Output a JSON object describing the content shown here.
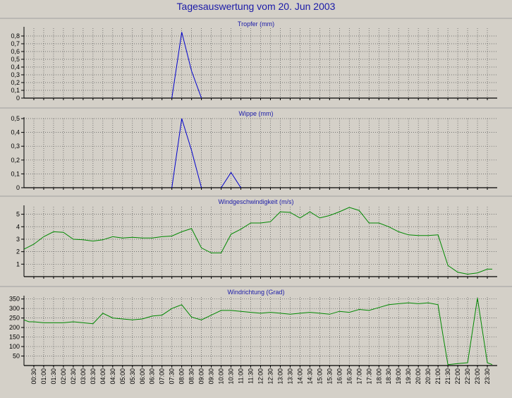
{
  "title": "Tagesauswertung vom 20. Jun 2003",
  "chart_data": [
    {
      "type": "line",
      "title": "Tropfer (mm)",
      "x": [
        "07:30",
        "08:00",
        "08:30",
        "09:00"
      ],
      "values": [
        0,
        0.85,
        0.35,
        0
      ],
      "color": "#0000cc",
      "ylim": [
        0,
        0.9
      ],
      "yticks": [
        "0",
        "0,1",
        "0,2",
        "0,3",
        "0,4",
        "0,5",
        "0,6",
        "0,7",
        "0,8"
      ]
    },
    {
      "type": "line",
      "title": "Wippe (mm)",
      "x": [
        "07:30",
        "08:00",
        "08:30",
        "09:00",
        "10:00",
        "10:30",
        "11:00"
      ],
      "values": [
        0,
        0.5,
        0.27,
        0,
        0,
        0.11,
        0
      ],
      "segments": [
        [
          0,
          3
        ],
        [
          4,
          6
        ]
      ],
      "color": "#0000cc",
      "ylim": [
        0,
        0.5
      ],
      "yticks": [
        "0",
        "0,1",
        "0,2",
        "0,3",
        "0,4",
        "0,5"
      ]
    },
    {
      "type": "line",
      "title": "Windgeschwindigkeit (m/s)",
      "x": [
        "00:00",
        "00:15",
        "00:30",
        "01:00",
        "01:30",
        "02:00",
        "02:30",
        "03:00",
        "03:30",
        "04:00",
        "04:30",
        "05:00",
        "05:30",
        "06:00",
        "06:30",
        "07:00",
        "07:30",
        "08:00",
        "08:30",
        "09:00",
        "09:30",
        "10:00",
        "10:30",
        "11:00",
        "11:30",
        "12:00",
        "12:30",
        "13:00",
        "13:30",
        "14:00",
        "14:30",
        "15:00",
        "15:30",
        "16:00",
        "16:30",
        "17:00",
        "17:30",
        "18:00",
        "18:30",
        "19:00",
        "19:30",
        "20:00",
        "20:30",
        "21:00",
        "21:30",
        "22:00",
        "22:30",
        "23:00",
        "23:30",
        "23:45"
      ],
      "values": [
        2.2,
        2.4,
        2.6,
        3.2,
        3.6,
        3.55,
        3.0,
        2.95,
        2.85,
        2.95,
        3.2,
        3.1,
        3.15,
        3.1,
        3.1,
        3.2,
        3.25,
        3.6,
        3.85,
        2.3,
        1.9,
        1.9,
        3.4,
        3.8,
        4.3,
        4.3,
        4.4,
        5.2,
        5.15,
        4.7,
        5.2,
        4.7,
        4.9,
        5.2,
        5.55,
        5.3,
        4.3,
        4.3,
        4.0,
        3.6,
        3.35,
        3.3,
        3.3,
        3.35,
        0.9,
        0.35,
        0.2,
        0.3,
        0.6,
        0.6
      ],
      "color": "#008800",
      "ylim": [
        0,
        5.6
      ],
      "yticks": [
        "1",
        "2",
        "3",
        "4",
        "5"
      ]
    },
    {
      "type": "line",
      "title": "Windrichtung (Grad)",
      "x": [
        "00:00",
        "00:15",
        "00:30",
        "01:00",
        "01:30",
        "02:00",
        "02:30",
        "03:00",
        "03:30",
        "04:00",
        "04:30",
        "05:00",
        "05:30",
        "06:00",
        "06:30",
        "07:00",
        "07:30",
        "08:00",
        "08:30",
        "09:00",
        "09:30",
        "10:00",
        "10:30",
        "11:00",
        "11:30",
        "12:00",
        "12:30",
        "13:00",
        "13:30",
        "14:00",
        "14:30",
        "15:00",
        "15:30",
        "16:00",
        "16:30",
        "17:00",
        "17:30",
        "18:00",
        "18:30",
        "19:00",
        "19:30",
        "20:00",
        "20:30",
        "21:00",
        "21:15",
        "21:30",
        "22:00",
        "22:30",
        "23:00",
        "23:30",
        "23:45"
      ],
      "values": [
        240,
        230,
        230,
        225,
        225,
        225,
        230,
        225,
        220,
        275,
        250,
        245,
        240,
        245,
        260,
        265,
        300,
        320,
        255,
        240,
        265,
        290,
        290,
        285,
        280,
        275,
        280,
        275,
        270,
        275,
        280,
        275,
        270,
        285,
        280,
        295,
        290,
        305,
        320,
        325,
        330,
        325,
        330,
        320,
        160,
        5,
        10,
        15,
        355,
        15,
        5
      ],
      "color": "#008800",
      "ylim": [
        0,
        360
      ],
      "yticks": [
        "50",
        "100",
        "150",
        "200",
        "250",
        "300",
        "350"
      ]
    }
  ],
  "x_ticks": [
    "00:30",
    "01:00",
    "01:30",
    "02:00",
    "02:30",
    "03:00",
    "03:30",
    "04:00",
    "04:30",
    "05:00",
    "05:30",
    "06:00",
    "06:30",
    "07:00",
    "07:30",
    "08:00",
    "08:30",
    "09:00",
    "09:30",
    "10:00",
    "10:30",
    "11:00",
    "11:30",
    "12:00",
    "12:30",
    "13:00",
    "13:30",
    "14:00",
    "14:30",
    "15:00",
    "15:30",
    "16:00",
    "16:30",
    "17:00",
    "17:30",
    "18:00",
    "18:30",
    "19:00",
    "19:30",
    "20:00",
    "20:30",
    "21:00",
    "21:30",
    "22:00",
    "22:30",
    "23:00",
    "23:30"
  ]
}
